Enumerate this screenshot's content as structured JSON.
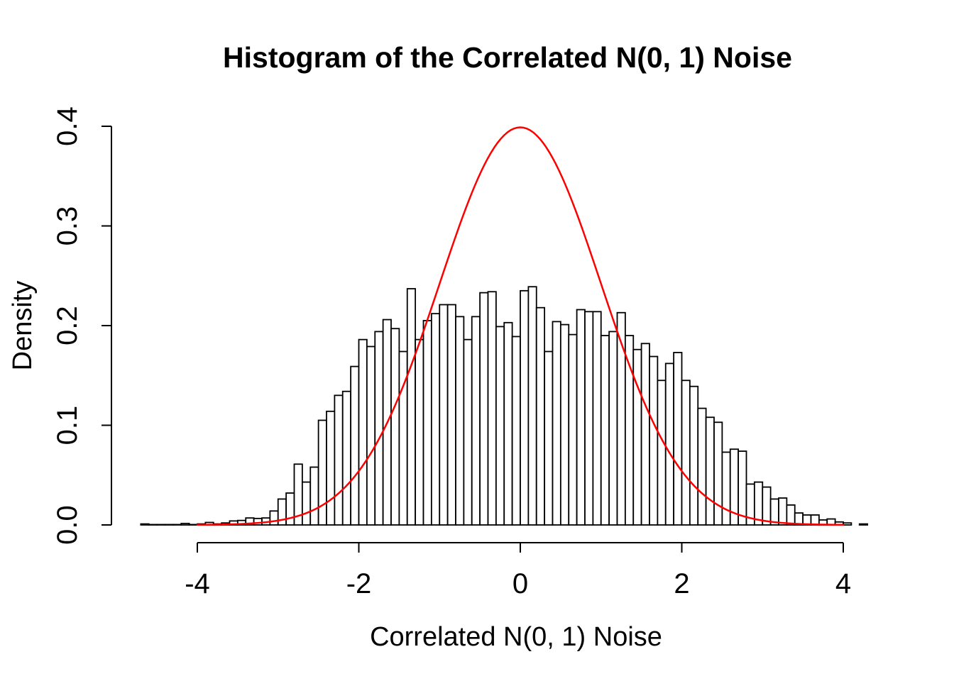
{
  "chart_data": {
    "type": "bar",
    "subtype": "histogram-with-density-curve",
    "title": "Histogram of the Correlated N(0, 1) Noise",
    "xlabel": "Correlated N(0, 1) Noise",
    "ylabel": "Density",
    "x_ticks": [
      -4,
      -2,
      0,
      2,
      4
    ],
    "x_tick_labels": [
      "-4",
      "-2",
      "0",
      "2",
      "4"
    ],
    "y_ticks": [
      0.0,
      0.1,
      0.2,
      0.3,
      0.4
    ],
    "y_tick_labels": [
      "0.0",
      "0.1",
      "0.2",
      "0.3",
      "0.4"
    ],
    "x_axis_range": [
      -4,
      4
    ],
    "y_axis_range": [
      0.0,
      0.4
    ],
    "grid": false,
    "legend": "none",
    "bin_start": -4.7,
    "bin_width": 0.1,
    "densities": [
      0.001,
      0.0004,
      0.0004,
      0.0004,
      0.0004,
      0.0015,
      0.0004,
      0.001,
      0.0025,
      0.001,
      0.002,
      0.004,
      0.0045,
      0.007,
      0.0065,
      0.007,
      0.014,
      0.026,
      0.032,
      0.061,
      0.043,
      0.058,
      0.105,
      0.114,
      0.13,
      0.134,
      0.159,
      0.186,
      0.179,
      0.194,
      0.206,
      0.197,
      0.174,
      0.237,
      0.186,
      0.205,
      0.212,
      0.221,
      0.221,
      0.209,
      0.186,
      0.209,
      0.233,
      0.234,
      0.199,
      0.203,
      0.189,
      0.235,
      0.239,
      0.218,
      0.174,
      0.204,
      0.201,
      0.191,
      0.216,
      0.214,
      0.214,
      0.19,
      0.194,
      0.213,
      0.19,
      0.176,
      0.182,
      0.169,
      0.145,
      0.162,
      0.173,
      0.145,
      0.139,
      0.117,
      0.108,
      0.103,
      0.073,
      0.076,
      0.074,
      0.041,
      0.043,
      0.038,
      0.026,
      0.027,
      0.02,
      0.012,
      0.01,
      0.01,
      0.005,
      0.006,
      0.003,
      0.002,
      0.0,
      0.001
    ],
    "overlay_curve": {
      "shape": "normal-density",
      "mean": 0,
      "sd": 1,
      "peak_density": 0.3989,
      "x_from": -4,
      "x_to": 4,
      "color": "#ff0000"
    },
    "colors": {
      "background": "#ffffff",
      "bar_fill": "#ffffff",
      "bar_stroke": "#000000",
      "axis": "#000000",
      "text": "#000000"
    }
  }
}
